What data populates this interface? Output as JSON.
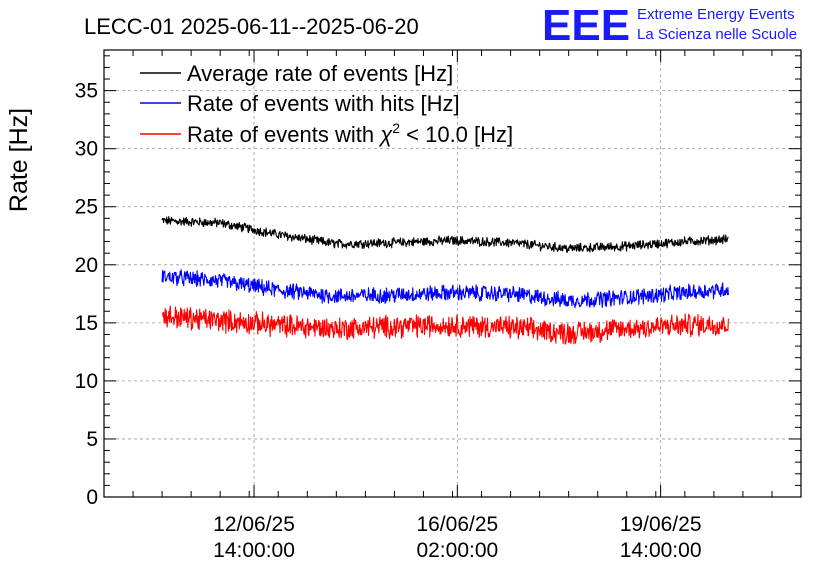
{
  "logo": {
    "mark": "EEE",
    "line1": "Extreme Energy Events",
    "line2": "La Scienza nelle Scuole",
    "color": "#1a1aff"
  },
  "chart_data": {
    "type": "line",
    "title": "LECC-01 2025-06-11--2025-06-20",
    "ylabel": "Rate [Hz]",
    "xlabel": "",
    "ylim": [
      0,
      38.5
    ],
    "yticks": [
      0,
      5,
      10,
      15,
      20,
      25,
      30,
      35
    ],
    "xlim": [
      "2025-06-10 00:00:00",
      "2025-06-22 00:00:00"
    ],
    "xticks": [
      {
        "at": "2025-06-12 14:00:00",
        "date": "12/06/25",
        "time": "14:00:00"
      },
      {
        "at": "2025-06-16 02:00:00",
        "date": "16/06/25",
        "time": "02:00:00"
      },
      {
        "at": "2025-06-19 14:00:00",
        "date": "19/06/25",
        "time": "14:00:00"
      }
    ],
    "grid": true,
    "legend_position": "top-left",
    "series": [
      {
        "name": "Average rate of events [Hz]",
        "color": "#000000",
        "noise": 0.35,
        "x": [
          "2025-06-11 00:00",
          "2025-06-12 00:00",
          "2025-06-13 00:00",
          "2025-06-14 00:00",
          "2025-06-15 00:00",
          "2025-06-16 00:00",
          "2025-06-17 00:00",
          "2025-06-18 00:00",
          "2025-06-19 00:00",
          "2025-06-20 00:00",
          "2025-06-20 18:00"
        ],
        "y": [
          23.8,
          23.6,
          22.6,
          21.8,
          21.9,
          22.1,
          21.9,
          21.4,
          21.6,
          22.0,
          22.2
        ]
      },
      {
        "name": "Rate of events with hits [Hz]",
        "color": "#0000ff",
        "noise": 0.6,
        "x": [
          "2025-06-11 00:00",
          "2025-06-12 00:00",
          "2025-06-13 00:00",
          "2025-06-14 00:00",
          "2025-06-15 00:00",
          "2025-06-16 00:00",
          "2025-06-17 00:00",
          "2025-06-18 00:00",
          "2025-06-19 00:00",
          "2025-06-20 00:00",
          "2025-06-20 18:00"
        ],
        "y": [
          19.0,
          18.6,
          17.8,
          17.3,
          17.4,
          17.6,
          17.5,
          16.9,
          17.2,
          17.6,
          17.9
        ]
      },
      {
        "name": "Rate of events with χ² < 10.0 [Hz]",
        "legend_text": "Rate of events with",
        "legend_symbol": "χ",
        "legend_sup": "2",
        "legend_rest": " < 10.0 [Hz]",
        "color": "#ff0000",
        "noise": 0.85,
        "x": [
          "2025-06-11 00:00",
          "2025-06-12 00:00",
          "2025-06-13 00:00",
          "2025-06-14 00:00",
          "2025-06-15 00:00",
          "2025-06-16 00:00",
          "2025-06-17 00:00",
          "2025-06-18 00:00",
          "2025-06-19 00:00",
          "2025-06-20 00:00",
          "2025-06-20 18:00"
        ],
        "y": [
          15.6,
          15.2,
          14.8,
          14.5,
          14.7,
          14.8,
          14.6,
          14.1,
          14.5,
          14.8,
          14.9
        ]
      }
    ]
  }
}
